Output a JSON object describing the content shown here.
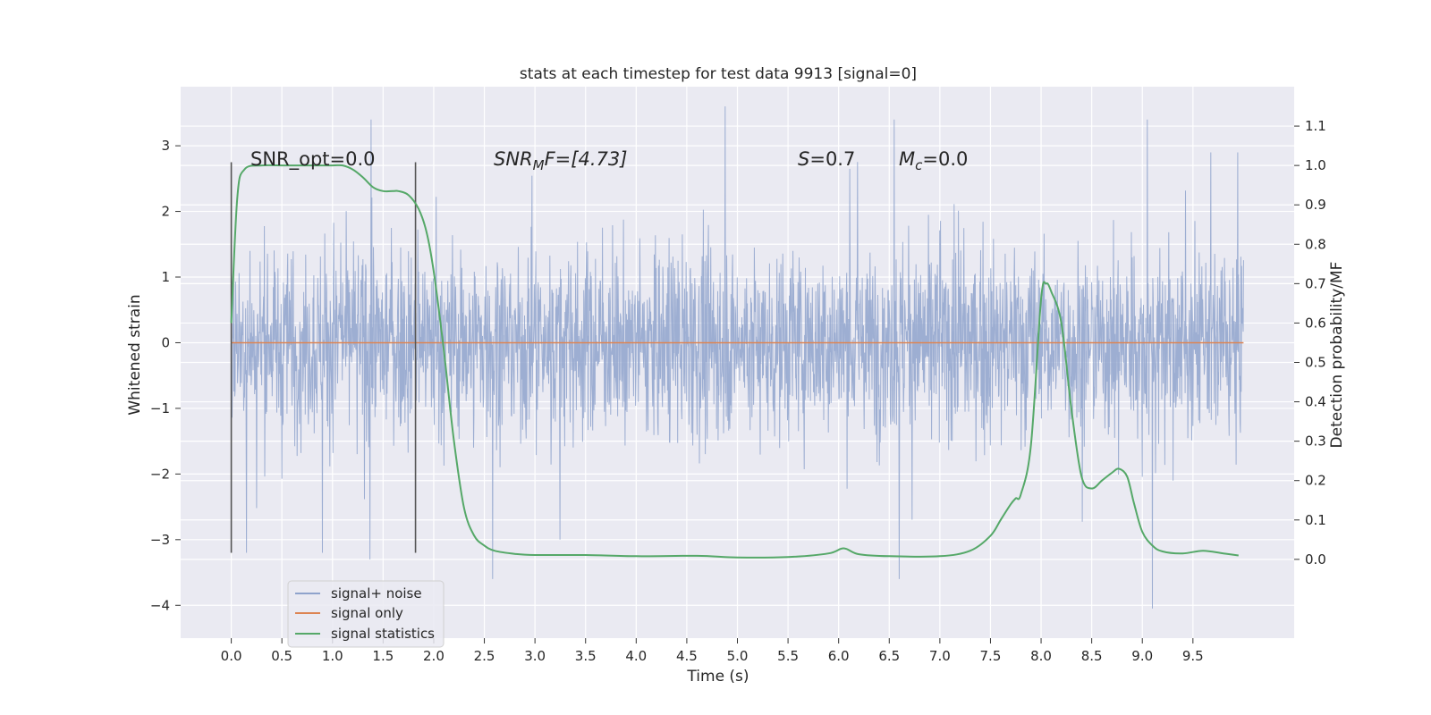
{
  "chart_data": {
    "type": "line",
    "title": "stats at each timestep for test data 9913 [signal=0]",
    "xlabel": "Time (s)",
    "ylabel_left": "Whitened strain",
    "ylabel_right": "Detection probability/MF",
    "xlim": [
      -0.5,
      10.5
    ],
    "ylim_left": [
      -4.5,
      3.9
    ],
    "ylim_right": [
      -0.2,
      1.2
    ],
    "xticks": [
      "0.0",
      "0.5",
      "1.0",
      "1.5",
      "2.0",
      "2.5",
      "3.0",
      "3.5",
      "4.0",
      "4.5",
      "5.0",
      "5.5",
      "6.0",
      "6.5",
      "7.0",
      "7.5",
      "8.0",
      "8.5",
      "9.0",
      "9.5"
    ],
    "yticks_left": [
      "3",
      "2",
      "1",
      "0",
      "−1",
      "−2",
      "−3",
      "−4"
    ],
    "yticks_right": [
      "1.1",
      "1.0",
      "0.9",
      "0.8",
      "0.7",
      "0.6",
      "0.5",
      "0.4",
      "0.3",
      "0.2",
      "0.1",
      "0.0"
    ],
    "grid": true,
    "legend_placement": "lower-left",
    "annotations": {
      "snr_opt": "SNR_opt=0.0",
      "snr_mf_main": "SNR",
      "snr_mf_sub": "M",
      "snr_mf_rest": "F=[4.73]",
      "s_main": "S",
      "s_rest": "=0.7",
      "mc_main": "M",
      "mc_sub": "c",
      "mc_rest": "=0.0"
    },
    "vertical_markers_x": [
      0.0,
      1.82
    ],
    "vertical_marker_range": [
      -3.2,
      2.75
    ],
    "colors": {
      "noise": "#8fa3cc",
      "signal_only": "#dd8452",
      "statistics": "#55a868",
      "axes_bg": "#eaeaf2",
      "grid": "#ffffff",
      "marker": "#555555"
    },
    "series": [
      {
        "name": "signal+ noise",
        "axis": "left",
        "x_range": [
          0.0,
          10.0
        ],
        "envelope_typical": [
          -1.6,
          1.6
        ],
        "extremes": [
          {
            "x": 0.15,
            "y": -3.2
          },
          {
            "x": 0.9,
            "y": -3.2
          },
          {
            "x": 1.37,
            "y": -3.3
          },
          {
            "x": 1.38,
            "y": 3.4
          },
          {
            "x": 2.58,
            "y": -3.6
          },
          {
            "x": 4.88,
            "y": 3.6
          },
          {
            "x": 6.55,
            "y": 3.4
          },
          {
            "x": 6.6,
            "y": -3.6
          },
          {
            "x": 9.1,
            "y": -4.05
          },
          {
            "x": 9.05,
            "y": 3.4
          }
        ]
      },
      {
        "name": "signal only",
        "axis": "left",
        "x": [
          0.0,
          10.0
        ],
        "y": [
          0.0,
          0.0
        ]
      },
      {
        "name": "signal statistics",
        "axis": "right",
        "x": [
          0.0,
          0.06,
          0.13,
          0.3,
          0.5,
          0.8,
          1.0,
          1.1,
          1.2,
          1.3,
          1.4,
          1.5,
          1.6,
          1.65,
          1.75,
          1.85,
          1.93,
          2.0,
          2.1,
          2.2,
          2.3,
          2.4,
          2.5,
          2.6,
          2.8,
          3.0,
          3.5,
          4.0,
          4.6,
          5.0,
          5.5,
          5.9,
          6.05,
          6.2,
          6.5,
          7.0,
          7.3,
          7.5,
          7.6,
          7.7,
          7.75,
          7.8,
          7.9,
          8.0,
          8.05,
          8.1,
          8.2,
          8.3,
          8.4,
          8.5,
          8.6,
          8.7,
          8.77,
          8.85,
          8.92,
          9.0,
          9.1,
          9.2,
          9.4,
          9.6,
          9.8,
          9.95
        ],
        "y": [
          0.6,
          0.92,
          0.99,
          1.0,
          1.0,
          1.0,
          1.0,
          1.0,
          0.99,
          0.97,
          0.945,
          0.935,
          0.935,
          0.935,
          0.925,
          0.89,
          0.83,
          0.73,
          0.53,
          0.3,
          0.13,
          0.06,
          0.035,
          0.022,
          0.014,
          0.011,
          0.011,
          0.008,
          0.009,
          0.005,
          0.006,
          0.015,
          0.028,
          0.013,
          0.008,
          0.008,
          0.022,
          0.06,
          0.1,
          0.14,
          0.155,
          0.165,
          0.29,
          0.66,
          0.7,
          0.68,
          0.6,
          0.38,
          0.21,
          0.18,
          0.2,
          0.22,
          0.23,
          0.21,
          0.14,
          0.07,
          0.035,
          0.02,
          0.015,
          0.022,
          0.015,
          0.01
        ]
      }
    ]
  }
}
